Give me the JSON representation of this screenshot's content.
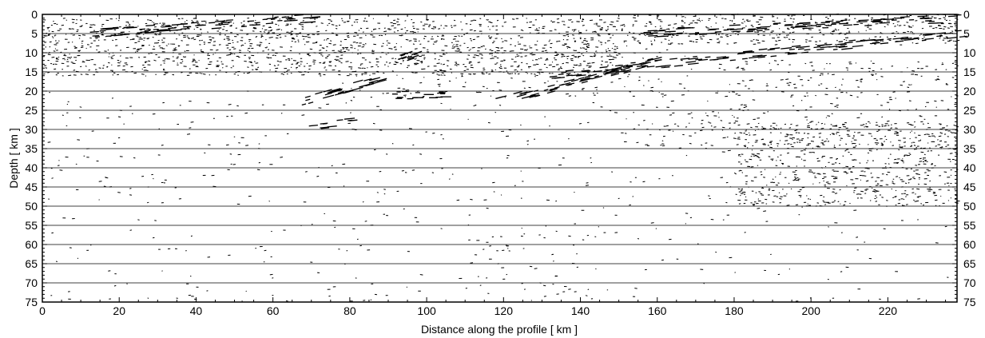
{
  "chart_data": {
    "type": "heatmap",
    "title": "",
    "xlabel": "Distance along the profile [ km ]",
    "ylabel": "Depth [ km ]",
    "xlim": [
      0,
      238
    ],
    "ylim": [
      0,
      75
    ],
    "y_inverted": true,
    "x_ticks": [
      0,
      20,
      40,
      60,
      80,
      100,
      120,
      140,
      160,
      180,
      200,
      220
    ],
    "x_tick_labels": [
      "0",
      "20",
      "40",
      "60",
      "80",
      "100",
      "120",
      "140",
      "160",
      "180",
      "200",
      "220"
    ],
    "y_ticks": [
      0,
      5,
      10,
      15,
      20,
      25,
      30,
      35,
      40,
      45,
      50,
      55,
      60,
      65,
      70,
      75
    ],
    "y_tick_labels": [
      "0",
      "5",
      "10",
      "15",
      "20",
      "25",
      "30",
      "35",
      "40",
      "45",
      "50",
      "55",
      "60",
      "65",
      "70",
      "75"
    ],
    "grid": "horizontal",
    "colors": {
      "reflection": "#000000",
      "background": "#ffffff",
      "gridline": "#000000"
    },
    "reflectivity_zones": [
      {
        "x": [
          0,
          150
        ],
        "y": [
          1,
          16
        ],
        "density": 0.55
      },
      {
        "x": [
          150,
          238
        ],
        "y": [
          0,
          8
        ],
        "density": 0.5
      },
      {
        "x": [
          78,
          170
        ],
        "y": [
          8,
          22
        ],
        "density": 0.12
      },
      {
        "x": [
          175,
          238
        ],
        "y": [
          12,
          25
        ],
        "density": 0.18
      },
      {
        "x": [
          180,
          238
        ],
        "y": [
          28,
          50
        ],
        "density": 0.45
      },
      {
        "x": [
          150,
          238
        ],
        "y": [
          25,
          35
        ],
        "density": 0.15
      },
      {
        "x": [
          0,
          180
        ],
        "y": [
          20,
          50
        ],
        "density": 0.04
      },
      {
        "x": [
          0,
          238
        ],
        "y": [
          50,
          75
        ],
        "density": 0.025
      },
      {
        "x": [
          110,
          150
        ],
        "y": [
          55,
          75
        ],
        "density": 0.05
      }
    ],
    "dipping_reflectors": [
      {
        "x": [
          66,
          88
        ],
        "y": [
          23,
          17
        ],
        "count": 34
      },
      {
        "x": [
          90,
          104
        ],
        "y": [
          21,
          21
        ],
        "count": 20
      },
      {
        "x": [
          118,
          160
        ],
        "y": [
          23,
          12
        ],
        "count": 60
      },
      {
        "x": [
          130,
          238
        ],
        "y": [
          16,
          5
        ],
        "count": 120
      },
      {
        "x": [
          155,
          238
        ],
        "y": [
          5,
          1
        ],
        "count": 90
      },
      {
        "x": [
          12,
          70
        ],
        "y": [
          5,
          1
        ],
        "count": 80
      },
      {
        "x": [
          92,
          98
        ],
        "y": [
          12,
          10
        ],
        "count": 10
      },
      {
        "x": [
          70,
          80
        ],
        "y": [
          29,
          28
        ],
        "count": 10
      }
    ]
  }
}
